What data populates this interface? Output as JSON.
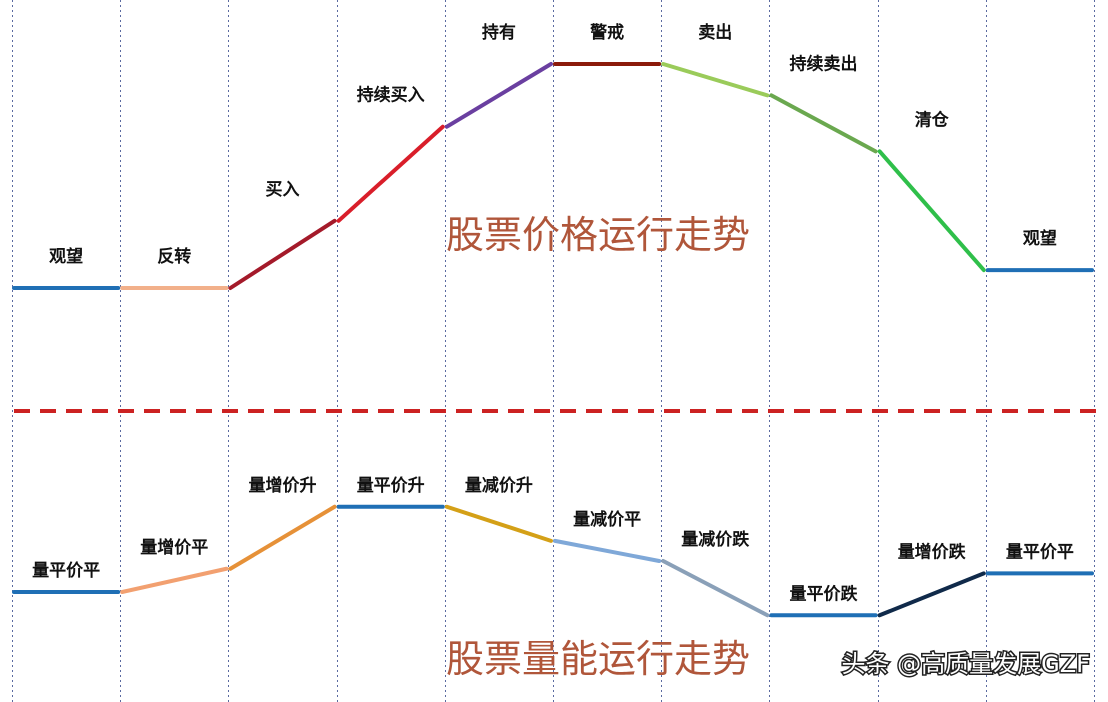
{
  "price_stages": [
    {
      "label": "观望",
      "level": 0.0,
      "color": "#1f6fb5"
    },
    {
      "label": "反转",
      "level": 0.0,
      "color": "#f2b08a"
    },
    {
      "label": "买入",
      "level": 0.3,
      "color": "#a41a2a"
    },
    {
      "label": "持续买入",
      "level": 0.72,
      "color": "#d91e2a"
    },
    {
      "label": "持有",
      "level": 1.0,
      "color": "#6a3fa0"
    },
    {
      "label": "警戒",
      "level": 1.0,
      "color": "#8b1a0a"
    },
    {
      "label": "卖出",
      "level": 0.86,
      "color": "#9acb5a"
    },
    {
      "label": "持续卖出",
      "level": 0.61,
      "color": "#6aa84f"
    },
    {
      "label": "清仓",
      "level": 0.08,
      "color": "#2fbf4a"
    },
    {
      "label": "观望",
      "level": 0.08,
      "color": "#1f6fb5"
    }
  ],
  "price_title": "股票价格运行走势",
  "volume_stages": [
    {
      "label": "量平价平",
      "level": 0.0,
      "color": "#1f6fb5"
    },
    {
      "label": "量增价平",
      "level": 0.15,
      "color": "#f2a070"
    },
    {
      "label": "量增价升",
      "level": 0.55,
      "color": "#e69138"
    },
    {
      "label": "量平价升",
      "level": 0.55,
      "color": "#1f6fb5"
    },
    {
      "label": "量减价升",
      "level": 0.33,
      "color": "#d4a017"
    },
    {
      "label": "量减价平",
      "level": 0.2,
      "color": "#7fa8d8"
    },
    {
      "label": "量减价跌",
      "level": -0.15,
      "color": "#8aa0b8"
    },
    {
      "label": "量平价跌",
      "level": -0.15,
      "color": "#1f6fb5"
    },
    {
      "label": "量增价跌",
      "level": 0.12,
      "color": "#102a4a"
    },
    {
      "label": "量平价平",
      "level": 0.12,
      "color": "#1f6fb5"
    }
  ],
  "volume_title": "股票量能运行走势",
  "watermark": "头条 @高质量发展GZF",
  "colors": {
    "grid": "#5a6aa0",
    "divider": "#cc2222",
    "title": "#b0563a"
  }
}
